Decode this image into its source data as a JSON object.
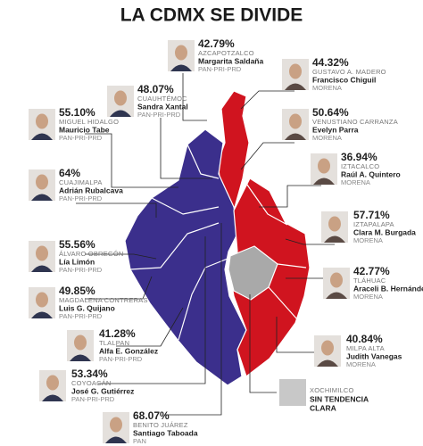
{
  "title": "LA CDMX SE DIVIDE",
  "boroughs": [
    {
      "percent": "42.79%",
      "name": "AZCAPOTZALCO",
      "candidate": "Margarita Saldaña",
      "party": "PAN-PRI-PRD"
    },
    {
      "percent": "44.32%",
      "name": "GUSTAVO A. MADERO",
      "candidate": "Francisco Chiguil",
      "party": "MORENA"
    },
    {
      "percent": "48.07%",
      "name": "CUAUHTÉMOC",
      "candidate": "Sandra Xantal",
      "party": "PAN-PRI-PRD"
    },
    {
      "percent": "55.10%",
      "name": "MIGUEL HIDALGO",
      "candidate": "Mauricio Tabe",
      "party": "PAN-PRI-PRD"
    },
    {
      "percent": "50.64%",
      "name": "VENUSTIANO CARRANZA",
      "candidate": "Evelyn Parra",
      "party": "MORENA"
    },
    {
      "percent": "36.94%",
      "name": "IZTACALCO",
      "candidate": "Raúl A. Quintero",
      "party": "MORENA"
    },
    {
      "percent": "64%",
      "name": "CUAJIMALPA",
      "candidate": "Adrián Rubalcava",
      "party": "PAN-PRI-PRD"
    },
    {
      "percent": "57.71%",
      "name": "IZTAPALAPA",
      "candidate": "Clara M. Burgada",
      "party": "MORENA"
    },
    {
      "percent": "55.56%",
      "name": "ÁLVARO OBREGÓN",
      "candidate": "Lía Limón",
      "party": "PAN-PRI-PRD"
    },
    {
      "percent": "42.77%",
      "name": "TLÁHUAC",
      "candidate": "Araceli B. Hernández",
      "party": "MORENA"
    },
    {
      "percent": "49.85%",
      "name": "MAGDALENA CONTRERAS",
      "candidate": "Luis G. Quijano",
      "party": "PAN-PRI-PRD"
    },
    {
      "percent": "40.84%",
      "name": "MILPA ALTA",
      "candidate": "Judith Vanegas",
      "party": "MORENA"
    },
    {
      "percent": "41.28%",
      "name": "TLALPAN",
      "candidate": "Alfa E. González",
      "party": "PAN-PRI-PRD"
    },
    {
      "percent": "53.34%",
      "name": "COYOACÁN",
      "candidate": "José G. Gutiérrez",
      "party": "PAN-PRI-PRD"
    },
    {
      "percent": "68.07%",
      "name": "BENITO JUÁREZ",
      "candidate": "Santiago Taboada",
      "party": "PAN"
    }
  ],
  "legend": {
    "borough": "XOCHIMILCO",
    "lines": [
      "SIN TENDENCIA",
      "CLARA"
    ]
  }
}
